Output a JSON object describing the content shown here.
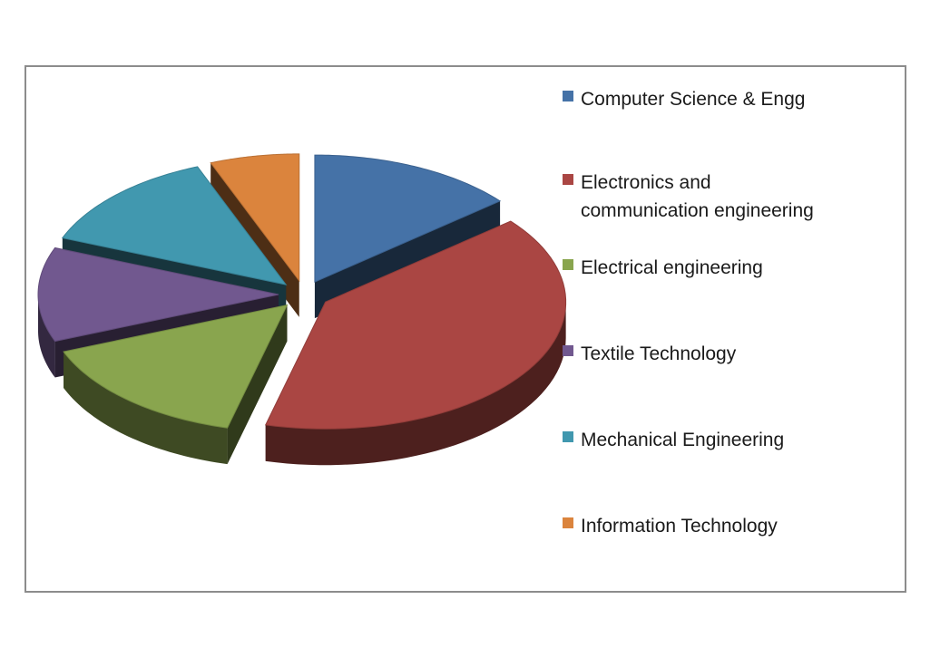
{
  "chart_data": {
    "type": "pie",
    "style": "3d-exploded",
    "title": "",
    "legend_position": "right",
    "categories": [
      "Computer Science & Engg",
      "Electronics and\ncommunication engineering",
      "Electrical engineering",
      "Textile Technology",
      "Mechanical Engineering",
      "Information Technology"
    ],
    "values": [
      14,
      40,
      15,
      12,
      13,
      6
    ],
    "colors": [
      "#4572a7",
      "#aa4643",
      "#89a54e",
      "#71588f",
      "#4198af",
      "#db843d"
    ]
  }
}
